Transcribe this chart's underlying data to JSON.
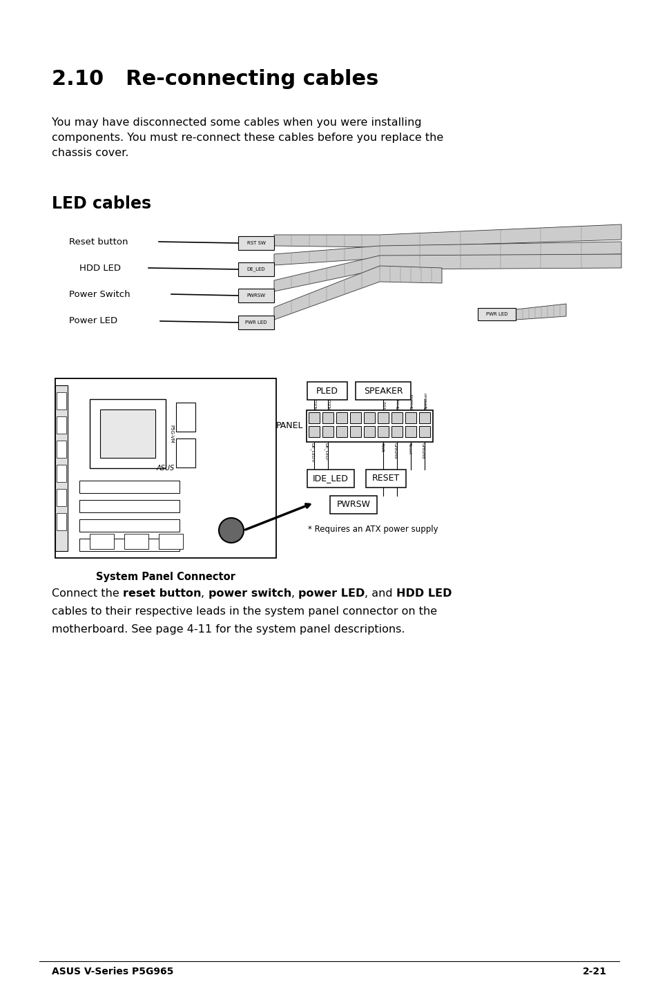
{
  "bg_color": "#ffffff",
  "title": "2.10   Re-connecting cables",
  "title_fontsize": 22,
  "title_fontweight": "bold",
  "body_text1": "You may have disconnected some cables when you were installing\ncomponents. You must re-connect these cables before you replace the\nchassis cover.",
  "body_fontsize": 11.5,
  "section_title": "LED cables",
  "section_fontsize": 17,
  "section_fontweight": "bold",
  "footer_left": "ASUS V-Series P5G965",
  "footer_right": "2-21",
  "footer_fontsize": 10,
  "connect_text_line2": "cables to their respective leads in the system panel connector on the",
  "connect_text_line3": "motherboard. See page 4-11 for the system panel descriptions."
}
